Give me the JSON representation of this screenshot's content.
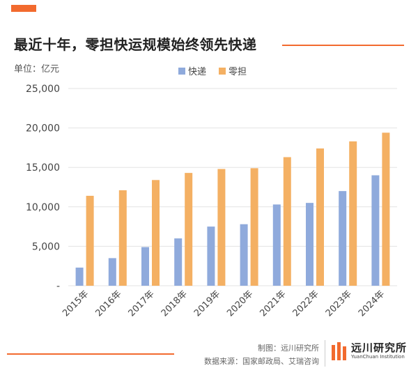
{
  "colors": {
    "accent": "#f26a2e",
    "series_express": "#8faadc",
    "series_ltl": "#f4b063",
    "grid": "#e3e3e3",
    "tick_text": "#444444"
  },
  "header": {
    "title": "最近十年，零担快运规模始终领先快递",
    "unit": "单位：亿元"
  },
  "footer": {
    "credit": "制图：远川研究所",
    "source": "数据来源：国家邮政局、艾瑞咨询",
    "logo_cn": "远川研究所",
    "logo_en": "YuanChuan Institution"
  },
  "chart_data": {
    "type": "bar",
    "title": "最近十年，零担快运规模始终领先快递",
    "xlabel": "",
    "ylabel": "单位：亿元",
    "categories": [
      "2015年",
      "2016年",
      "2017年",
      "2018年",
      "2019年",
      "2020年",
      "2021年",
      "2022年",
      "2023年",
      "2024年"
    ],
    "series": [
      {
        "name": "快递",
        "values": [
          2300,
          3500,
          4900,
          6000,
          7500,
          7800,
          10300,
          10500,
          12000,
          14000
        ]
      },
      {
        "name": "零担",
        "values": [
          11400,
          12100,
          13400,
          14300,
          14800,
          14900,
          16300,
          17400,
          18300,
          19400
        ]
      }
    ],
    "ylim": [
      0,
      25000
    ],
    "yticks": [
      0,
      5000,
      10000,
      15000,
      20000,
      25000
    ],
    "ytick_labels": [
      "-",
      "5,000",
      "10,000",
      "15,000",
      "20,000",
      "25,000"
    ],
    "grid": true,
    "legend": "top-center"
  }
}
